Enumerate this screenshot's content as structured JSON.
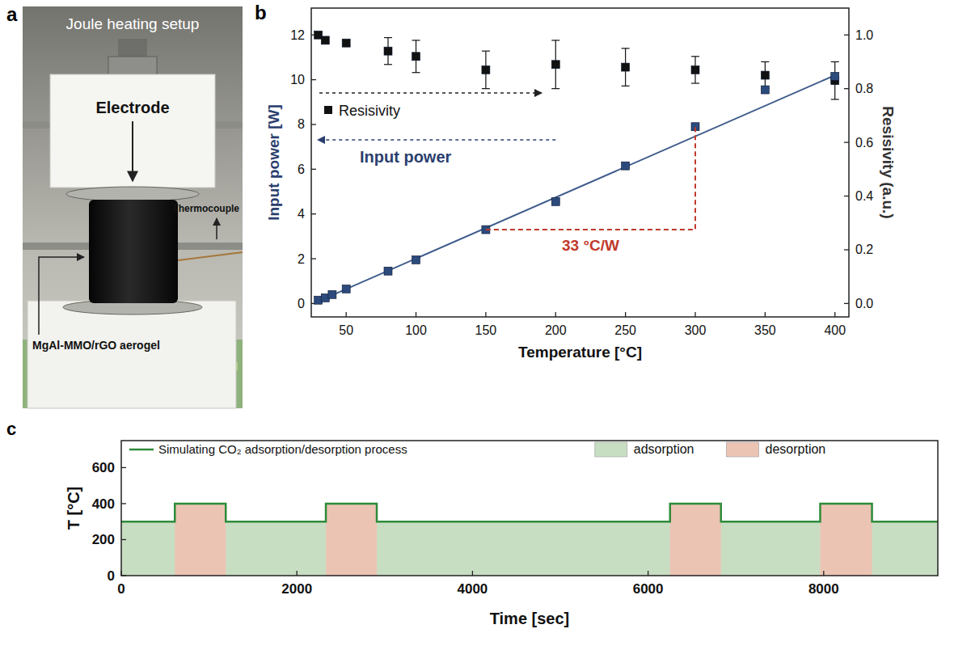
{
  "photo": {
    "panel_label": "a",
    "title": "Joule heating setup",
    "labels": {
      "electrode": "Electrode",
      "thermocouple": "Thermocouple",
      "sample": "MgAl-MMO/rGO aerogel"
    }
  },
  "chart_data": [
    {
      "panel_label": "b",
      "type": "scatter",
      "x_label": "Temperature [°C]",
      "y_label": "Input power [W]",
      "y2_label": "Resisivity (a.u.)",
      "xlim": [
        25,
        410
      ],
      "xticks": [
        50,
        100,
        150,
        200,
        250,
        300,
        350,
        400
      ],
      "ylim": [
        -0.6,
        13.2
      ],
      "yticks": [
        0,
        2,
        4,
        6,
        8,
        10,
        12
      ],
      "y2lim": [
        -0.05,
        1.1
      ],
      "y2ticks": [
        {
          "value": 0,
          "label": "0.0"
        },
        0.2,
        0.4,
        0.6,
        0.8,
        {
          "value": 1,
          "label": "1.0"
        }
      ],
      "legend": "left",
      "series": [
        {
          "name": "Resisivity",
          "color": "#111111",
          "marker": "square",
          "axis": "y2",
          "x": [
            30,
            35,
            50,
            80,
            100,
            150,
            200,
            250,
            300,
            350,
            400
          ],
          "values": [
            1.0,
            0.98,
            0.97,
            0.94,
            0.92,
            0.87,
            0.89,
            0.88,
            0.87,
            0.85,
            0.83
          ],
          "errors": [
            0.01,
            0.01,
            0.01,
            0.05,
            0.06,
            0.07,
            0.09,
            0.07,
            0.05,
            0.05,
            0.07
          ]
        },
        {
          "name": "Input power",
          "color": "#2c4a7c",
          "marker": "square",
          "x": [
            30,
            35,
            40,
            50,
            80,
            100,
            150,
            200,
            250,
            300,
            350,
            400
          ],
          "values": [
            0.15,
            0.25,
            0.4,
            0.65,
            1.45,
            1.95,
            3.3,
            4.55,
            6.15,
            7.9,
            9.55,
            10.15
          ]
        },
        {
          "type": "line",
          "color": "#3d5a8a",
          "line_style": "solid",
          "x": [
            30,
            400
          ],
          "values": [
            0.1,
            10.2
          ]
        }
      ],
      "annotations": [
        {
          "text": "33 °C/W",
          "color": "#c0392b",
          "line_style": "dashed",
          "x": [
            150,
            300,
            300
          ],
          "y": [
            3.3,
            3.3,
            7.9
          ]
        }
      ]
    },
    {
      "panel_label": "c",
      "type": "line",
      "x_label": "Time [sec]",
      "y_label": "T [°C]",
      "xlim": [
        0,
        9300
      ],
      "xticks": [
        0,
        2000,
        4000,
        6000,
        8000
      ],
      "ylim": [
        0,
        750
      ],
      "yticks": [
        0,
        200,
        400,
        600
      ],
      "legend": "top",
      "series": [
        {
          "name": "Simulating CO₂ adsorption/desorption process",
          "color": "#2e8b3a",
          "x": [
            0,
            610,
            610,
            1190,
            1190,
            2330,
            2330,
            2910,
            2910,
            6250,
            6250,
            6830,
            6830,
            7960,
            7960,
            8550,
            8550,
            9300
          ],
          "values": [
            300,
            300,
            400,
            400,
            300,
            300,
            400,
            400,
            300,
            300,
            400,
            400,
            300,
            300,
            400,
            400,
            300,
            300
          ]
        }
      ],
      "regions": [
        {
          "name": "adsorption",
          "color": "#c8dec3"
        },
        {
          "name": "desorption",
          "color": "#ecc4b4",
          "intervals": [
            [
              610,
              1190
            ],
            [
              2330,
              2910
            ],
            [
              6250,
              6830
            ],
            [
              7960,
              8550
            ]
          ]
        }
      ]
    }
  ]
}
